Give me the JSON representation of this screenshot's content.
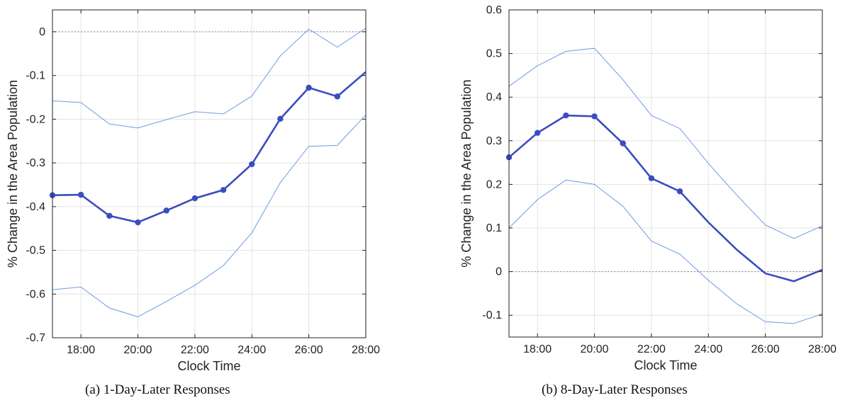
{
  "chart_data": [
    {
      "type": "line",
      "caption": "(a) 1-Day-Later Responses",
      "xlabel": "Clock Time",
      "ylabel": "% Change in the Area Population",
      "xlim": [
        17,
        28
      ],
      "ylim": [
        -0.7,
        0.05
      ],
      "xticks": [
        18,
        20,
        22,
        24,
        26,
        28
      ],
      "xtick_labels": [
        "18:00",
        "20:00",
        "22:00",
        "24:00",
        "26:00",
        "28:00"
      ],
      "yticks": [
        0,
        -0.1,
        -0.2,
        -0.3,
        -0.4,
        -0.5,
        -0.6,
        -0.7
      ],
      "ytick_labels": [
        "0",
        "-0.1",
        "-0.2",
        "-0.3",
        "-0.4",
        "-0.5",
        "-0.6",
        "-0.7"
      ],
      "grid": true,
      "zero_line": true,
      "x": [
        17,
        18,
        19,
        20,
        21,
        22,
        23,
        24,
        25,
        26,
        27,
        28
      ],
      "series": [
        {
          "role": "estimate",
          "color": "#3a4dbf",
          "values": [
            -0.374,
            -0.373,
            -0.421,
            -0.436,
            -0.409,
            -0.381,
            -0.362,
            -0.303,
            -0.199,
            -0.128,
            -0.148,
            -0.092
          ],
          "markers": [
            true,
            true,
            true,
            true,
            true,
            true,
            true,
            true,
            true,
            true,
            true,
            false
          ]
        },
        {
          "role": "upper",
          "color": "#6f9ae6",
          "values": [
            -0.158,
            -0.162,
            -0.211,
            -0.22,
            -0.201,
            -0.183,
            -0.188,
            -0.147,
            -0.055,
            0.006,
            -0.035,
            0.008
          ]
        },
        {
          "role": "lower",
          "color": "#6f9ae6",
          "values": [
            -0.59,
            -0.584,
            -0.632,
            -0.652,
            -0.617,
            -0.58,
            -0.535,
            -0.46,
            -0.345,
            -0.262,
            -0.26,
            -0.19
          ]
        }
      ]
    },
    {
      "type": "line",
      "caption": "(b) 8-Day-Later Responses",
      "xlabel": "Clock Time",
      "ylabel": "% Change in the Area Population",
      "xlim": [
        17,
        28
      ],
      "ylim": [
        -0.15,
        0.6
      ],
      "xticks": [
        18,
        20,
        22,
        24,
        26,
        28
      ],
      "xtick_labels": [
        "18:00",
        "20:00",
        "22:00",
        "24:00",
        "26:00",
        "28:00"
      ],
      "yticks": [
        0.6,
        0.5,
        0.4,
        0.3,
        0.2,
        0.1,
        0,
        -0.1
      ],
      "ytick_labels": [
        "0.6",
        "0.5",
        "0.4",
        "0.3",
        "0.2",
        "0.1",
        "0",
        "-0.1"
      ],
      "grid": true,
      "zero_line": true,
      "x": [
        17,
        18,
        19,
        20,
        21,
        22,
        23,
        24,
        25,
        26,
        27,
        28
      ],
      "series": [
        {
          "role": "estimate",
          "color": "#3a4dbf",
          "values": [
            0.262,
            0.318,
            0.358,
            0.356,
            0.294,
            0.214,
            0.184,
            0.113,
            0.05,
            -0.004,
            -0.022,
            0.004
          ],
          "markers": [
            true,
            true,
            true,
            true,
            true,
            true,
            true,
            false,
            false,
            false,
            false,
            false
          ]
        },
        {
          "role": "upper",
          "color": "#6f9ae6",
          "values": [
            0.425,
            0.472,
            0.505,
            0.512,
            0.44,
            0.358,
            0.328,
            0.248,
            0.175,
            0.107,
            0.076,
            0.105
          ]
        },
        {
          "role": "lower",
          "color": "#6f9ae6",
          "values": [
            0.1,
            0.165,
            0.21,
            0.2,
            0.15,
            0.07,
            0.04,
            -0.02,
            -0.074,
            -0.115,
            -0.119,
            -0.097
          ]
        }
      ]
    }
  ]
}
